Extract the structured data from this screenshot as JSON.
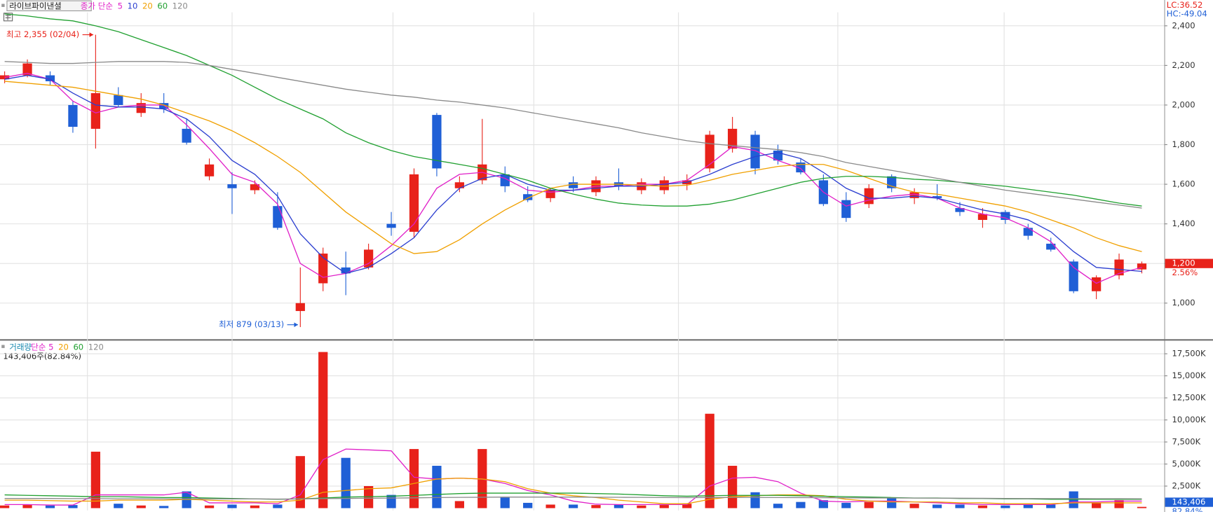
{
  "chart_data": [
    {
      "type": "candlestick",
      "title": "라이브파이낸셜",
      "legend_title": "종가 단순",
      "indicators": [
        "LC:36.52",
        "HC:-49.04"
      ],
      "annotations": [
        "최고 2,355 (02/04)",
        "최저 879 (03/13)"
      ],
      "last_label": "1,200",
      "change_label": "2.56%",
      "up_color": "#e8221a",
      "down_color": "#1f5fd6",
      "open": [
        2130,
        2150,
        2150,
        2000,
        1880,
        2050,
        1960,
        2010,
        1880,
        1640,
        1600,
        1570,
        1490,
        960,
        1100,
        1180,
        1180,
        1400,
        1360,
        1950,
        1580,
        1620,
        1650,
        1550,
        1530,
        1610,
        1560,
        1610,
        1570,
        1570,
        1600,
        1680,
        1780,
        1850,
        1770,
        1710,
        1620,
        1520,
        1500,
        1640,
        1530,
        1540,
        1480,
        1420,
        1460,
        1380,
        1300,
        1210,
        1060,
        1140,
        1170
      ],
      "high": [
        2170,
        2230,
        2170,
        2020,
        2355,
        2090,
        2060,
        2060,
        1930,
        1730,
        1660,
        1620,
        1560,
        1180,
        1280,
        1260,
        1300,
        1460,
        1680,
        1960,
        1640,
        1930,
        1690,
        1590,
        1580,
        1640,
        1640,
        1680,
        1630,
        1640,
        1650,
        1870,
        1940,
        1870,
        1800,
        1730,
        1650,
        1560,
        1600,
        1650,
        1580,
        1600,
        1510,
        1480,
        1470,
        1400,
        1330,
        1220,
        1140,
        1250,
        1210
      ],
      "low": [
        2110,
        2140,
        2100,
        1860,
        1780,
        1990,
        1940,
        1960,
        1800,
        1620,
        1450,
        1550,
        1370,
        879,
        1060,
        1040,
        1170,
        1340,
        1330,
        1640,
        1560,
        1600,
        1560,
        1510,
        1510,
        1560,
        1540,
        1570,
        1550,
        1550,
        1570,
        1660,
        1760,
        1650,
        1700,
        1650,
        1490,
        1410,
        1480,
        1560,
        1500,
        1520,
        1440,
        1380,
        1400,
        1320,
        1260,
        1050,
        1020,
        1120,
        1150
      ],
      "close": [
        2150,
        2210,
        2120,
        1890,
        2060,
        2000,
        2010,
        1980,
        1810,
        1700,
        1580,
        1600,
        1380,
        1000,
        1250,
        1150,
        1270,
        1380,
        1650,
        1680,
        1610,
        1700,
        1590,
        1520,
        1570,
        1580,
        1620,
        1590,
        1610,
        1620,
        1620,
        1850,
        1880,
        1680,
        1720,
        1660,
        1500,
        1430,
        1580,
        1580,
        1560,
        1530,
        1460,
        1450,
        1420,
        1340,
        1270,
        1060,
        1130,
        1220,
        1200
      ],
      "ylim": [
        820,
        2460
      ],
      "yticks": [
        {
          "value": 1000,
          "label": "1,000"
        },
        {
          "value": 1200,
          "label": "1,200"
        },
        {
          "value": 1400,
          "label": "1,400"
        },
        {
          "value": 1600,
          "label": "1,600"
        },
        {
          "value": 1800,
          "label": "1,800"
        },
        {
          "value": 2000,
          "label": "2,000"
        },
        {
          "value": 2200,
          "label": "2,200"
        },
        {
          "value": 2400,
          "label": "2,400"
        }
      ],
      "grid": true,
      "series": [
        {
          "name": "5",
          "color": "#e020c8",
          "values": [
            2140,
            2160,
            2130,
            2020,
            1960,
            1990,
            2000,
            2000,
            1900,
            1780,
            1650,
            1610,
            1500,
            1200,
            1130,
            1150,
            1200,
            1290,
            1400,
            1580,
            1650,
            1660,
            1630,
            1570,
            1560,
            1570,
            1590,
            1590,
            1600,
            1600,
            1620,
            1700,
            1790,
            1770,
            1720,
            1680,
            1560,
            1490,
            1520,
            1540,
            1550,
            1530,
            1480,
            1450,
            1430,
            1380,
            1310,
            1180,
            1100,
            1150,
            1180
          ]
        },
        {
          "name": "10",
          "color": "#2c3fd0",
          "values": [
            2130,
            2150,
            2130,
            2060,
            2000,
            1990,
            1990,
            1980,
            1930,
            1840,
            1720,
            1650,
            1540,
            1350,
            1230,
            1150,
            1180,
            1250,
            1330,
            1470,
            1580,
            1630,
            1650,
            1600,
            1570,
            1570,
            1580,
            1590,
            1590,
            1600,
            1610,
            1650,
            1700,
            1740,
            1760,
            1730,
            1660,
            1580,
            1530,
            1530,
            1540,
            1530,
            1500,
            1470,
            1450,
            1420,
            1360,
            1260,
            1180,
            1170,
            1160
          ]
        },
        {
          "name": "20",
          "color": "#f0a000",
          "values": [
            2120,
            2110,
            2100,
            2090,
            2070,
            2050,
            2030,
            2000,
            1960,
            1920,
            1870,
            1810,
            1740,
            1660,
            1560,
            1460,
            1380,
            1300,
            1250,
            1260,
            1320,
            1400,
            1470,
            1530,
            1580,
            1600,
            1600,
            1600,
            1595,
            1590,
            1595,
            1620,
            1650,
            1670,
            1690,
            1700,
            1700,
            1670,
            1630,
            1590,
            1560,
            1550,
            1530,
            1510,
            1490,
            1460,
            1420,
            1380,
            1330,
            1290,
            1260
          ]
        },
        {
          "name": "60",
          "color": "#20a030",
          "values": [
            2460,
            2450,
            2435,
            2425,
            2400,
            2370,
            2330,
            2290,
            2250,
            2200,
            2150,
            2090,
            2030,
            1980,
            1930,
            1860,
            1810,
            1770,
            1740,
            1720,
            1700,
            1680,
            1650,
            1620,
            1580,
            1550,
            1525,
            1505,
            1495,
            1490,
            1490,
            1500,
            1520,
            1550,
            1580,
            1610,
            1630,
            1640,
            1640,
            1635,
            1625,
            1620,
            1610,
            1600,
            1590,
            1575,
            1560,
            1545,
            1525,
            1505,
            1490
          ]
        },
        {
          "name": "120",
          "color": "#8a8a8a",
          "values": [
            2220,
            2215,
            2210,
            2210,
            2215,
            2220,
            2220,
            2220,
            2215,
            2200,
            2180,
            2160,
            2140,
            2120,
            2100,
            2080,
            2065,
            2050,
            2040,
            2025,
            2015,
            2000,
            1985,
            1965,
            1945,
            1925,
            1905,
            1885,
            1860,
            1840,
            1820,
            1805,
            1795,
            1785,
            1775,
            1760,
            1740,
            1710,
            1690,
            1670,
            1650,
            1630,
            1610,
            1590,
            1570,
            1555,
            1540,
            1525,
            1510,
            1495,
            1480
          ]
        }
      ]
    },
    {
      "type": "bar",
      "legend_title": "거래량",
      "info": "143,406주(82.84%)",
      "last_label": "143,406",
      "ratio_label": "82.84%",
      "values": [
        300,
        350,
        300,
        350,
        6400,
        500,
        300,
        250,
        1900,
        300,
        400,
        300,
        400,
        5900,
        17700,
        5700,
        2500,
        1500,
        6700,
        4800,
        800,
        6700,
        1200,
        600,
        400,
        400,
        350,
        400,
        300,
        350,
        500,
        10700,
        4800,
        1800,
        500,
        700,
        900,
        600,
        700,
        1200,
        500,
        400,
        400,
        300,
        300,
        400,
        400,
        1900,
        600,
        900,
        143.406
      ],
      "ylim": [
        0,
        18500
      ],
      "yticks": [
        {
          "value": 2500,
          "label": "2,500K"
        },
        {
          "value": 5000,
          "label": "5,000K"
        },
        {
          "value": 7500,
          "label": "7,500K"
        },
        {
          "value": 10000,
          "label": "10,000K"
        },
        {
          "value": 12500,
          "label": "12,500K"
        },
        {
          "value": 15000,
          "label": "15,000K"
        },
        {
          "value": 17500,
          "label": "17,500K"
        }
      ],
      "grid": true,
      "series": [
        {
          "name": "단순 5",
          "color": "#e020c8",
          "values": [
            400,
            400,
            350,
            350,
            1500,
            1500,
            1500,
            1500,
            1800,
            600,
            600,
            600,
            500,
            1500,
            5500,
            6700,
            6600,
            6500,
            3500,
            3300,
            3400,
            3300,
            2800,
            2000,
            1500,
            800,
            450,
            400,
            400,
            400,
            400,
            2500,
            3400,
            3500,
            3000,
            1700,
            800,
            700,
            800,
            800,
            700,
            600,
            500,
            400,
            400,
            400,
            400,
            700,
            700,
            800,
            800
          ]
        },
        {
          "name": "20",
          "color": "#f0a000",
          "values": [
            900,
            900,
            850,
            800,
            800,
            900,
            900,
            900,
            1000,
            900,
            800,
            700,
            700,
            900,
            1800,
            2000,
            2200,
            2300,
            2800,
            3300,
            3400,
            3300,
            3000,
            2200,
            1700,
            1400,
            1200,
            900,
            700,
            500,
            500,
            1000,
            1300,
            1400,
            1500,
            1500,
            1400,
            1000,
            800,
            700,
            700,
            700,
            600,
            600,
            500,
            500,
            500,
            600,
            600,
            600,
            600
          ]
        },
        {
          "name": "60",
          "color": "#20a030",
          "values": [
            1500,
            1450,
            1400,
            1350,
            1300,
            1300,
            1250,
            1200,
            1200,
            1150,
            1100,
            1050,
            1000,
            1050,
            1150,
            1250,
            1300,
            1350,
            1450,
            1550,
            1650,
            1700,
            1700,
            1700,
            1700,
            1700,
            1650,
            1600,
            1500,
            1400,
            1350,
            1400,
            1450,
            1450,
            1450,
            1400,
            1350,
            1300,
            1250,
            1200,
            1150,
            1150,
            1100,
            1100,
            1050,
            1050,
            1000,
            1000,
            1000,
            1000,
            1000
          ]
        },
        {
          "name": "120",
          "color": "#8a8a8a",
          "values": [
            1100,
            1100,
            1100,
            1080,
            1080,
            1060,
            1060,
            1050,
            1050,
            1050,
            1040,
            1040,
            1030,
            1040,
            1080,
            1100,
            1120,
            1140,
            1170,
            1200,
            1220,
            1240,
            1250,
            1250,
            1250,
            1250,
            1240,
            1230,
            1220,
            1200,
            1190,
            1200,
            1210,
            1210,
            1200,
            1190,
            1180,
            1170,
            1160,
            1150,
            1140,
            1130,
            1120,
            1110,
            1100,
            1090,
            1080,
            1080,
            1070,
            1070,
            1060
          ]
        }
      ]
    }
  ]
}
